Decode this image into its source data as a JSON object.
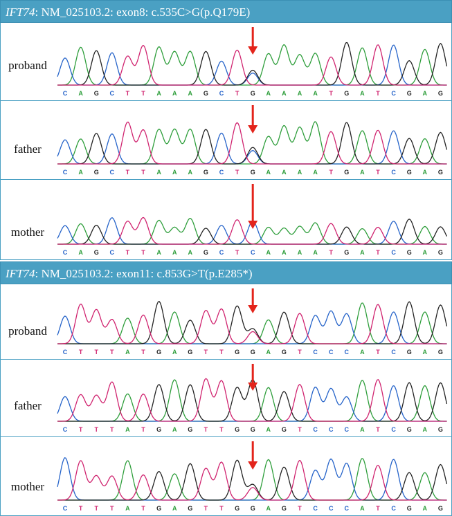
{
  "colors": {
    "header_bg": "#4aa0c3",
    "header_text": "#ffffff",
    "border": "#4aa0c3",
    "arrow": "#e3241b",
    "A": "#2e9e3b",
    "C": "#2563c9",
    "G": "#222222",
    "T": "#d0236f"
  },
  "panels": [
    {
      "gene": "IFT74",
      "variant_text": ":  NM_025103.2:  exon8:  c.535C>G(p.Q179E)",
      "sequence": "CAGCTTAAAGCTGAAAATGATCGAG",
      "mutation_index": 12,
      "rows": [
        {
          "label": "proband",
          "genotype": "het",
          "second_base": "C"
        },
        {
          "label": "father",
          "genotype": "het",
          "second_base": "C"
        },
        {
          "label": "mother",
          "genotype": "ref",
          "sequence": "CAGCTTAAAGCTCAAAATGATCGAG"
        }
      ]
    },
    {
      "gene": "IFT74",
      "variant_text": ":  NM_025103.2:  exon11:  c.853G>T(p.E285*)",
      "sequence": "CTTTATGAGTTGGAGTCCCATCGAG",
      "mutation_index": 12,
      "rows": [
        {
          "label": "proband",
          "genotype": "het",
          "second_base": "T"
        },
        {
          "label": "father",
          "genotype": "ref"
        },
        {
          "label": "mother",
          "genotype": "het",
          "second_base": "T"
        }
      ]
    }
  ]
}
